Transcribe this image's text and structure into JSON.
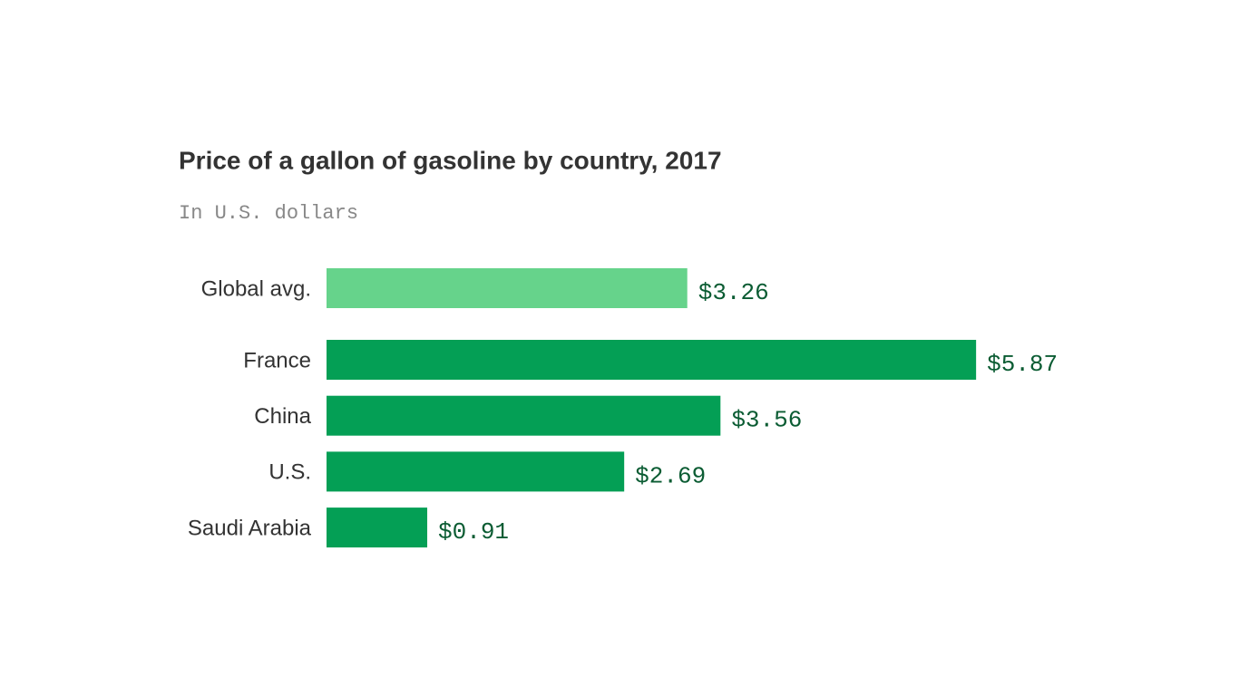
{
  "chart_data": {
    "type": "bar",
    "orientation": "horizontal",
    "title": "Price of a gallon of gasoline by country, 2017",
    "subtitle": "In U.S. dollars",
    "categories": [
      "Global avg.",
      "France",
      "China",
      "U.S.",
      "Saudi Arabia"
    ],
    "values": [
      3.26,
      5.87,
      3.56,
      2.69,
      0.91
    ],
    "value_labels": [
      "$3.26",
      "$5.87",
      "$3.56",
      "$2.69",
      "$0.91"
    ],
    "colors": [
      "#66d38b",
      "#049f55",
      "#049f55",
      "#049f55",
      "#049f55"
    ]
  }
}
